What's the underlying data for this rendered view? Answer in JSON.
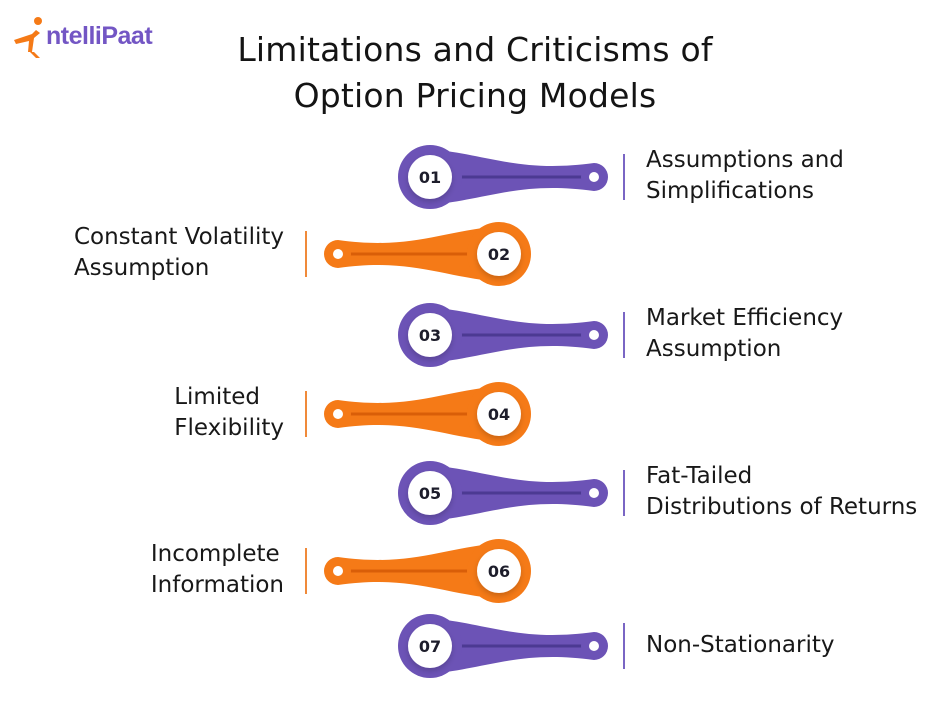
{
  "brand": {
    "logo_text": "ntelliPaat",
    "logo_initial": "I"
  },
  "title": {
    "line1": "Limitations and Criticisms of",
    "line2": "Option Pricing Models"
  },
  "colors": {
    "purple": "#6c53b6",
    "purple_dark": "#4c3a92",
    "orange": "#f57a17",
    "orange_dark": "#d95e08",
    "divider_purple": "#7a66c4",
    "divider_orange": "#f08a3a"
  },
  "items": [
    {
      "number": "01",
      "line1": "Assumptions and",
      "line2": "Simplifications",
      "side": "right",
      "color": "purple"
    },
    {
      "number": "02",
      "line1": "Constant Volatility",
      "line2": "Assumption",
      "side": "left",
      "color": "orange"
    },
    {
      "number": "03",
      "line1": "Market Efficiency",
      "line2": "Assumption",
      "side": "right",
      "color": "purple"
    },
    {
      "number": "04",
      "line1": "Limited",
      "line2": "Flexibility",
      "side": "left",
      "color": "orange"
    },
    {
      "number": "05",
      "line1": "Fat-Tailed",
      "line2": "Distributions of Returns",
      "side": "right",
      "color": "purple"
    },
    {
      "number": "06",
      "line1": "Incomplete",
      "line2": "Information",
      "side": "left",
      "color": "orange"
    },
    {
      "number": "07",
      "line1": "Non-Stationarity",
      "line2": "",
      "side": "right",
      "color": "purple"
    }
  ]
}
